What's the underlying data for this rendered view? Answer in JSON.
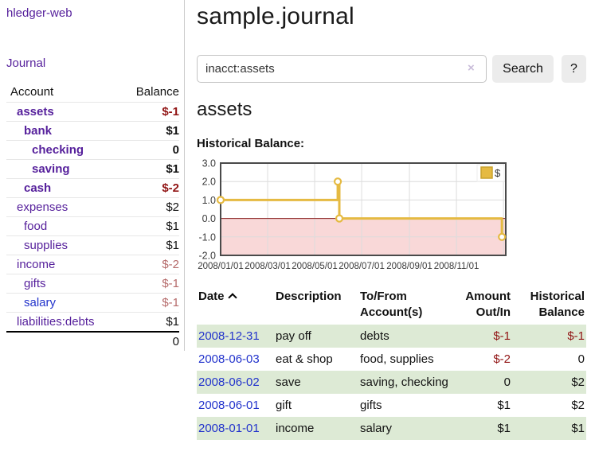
{
  "sidebar": {
    "brand": "hledger-web",
    "journal_label": "Journal",
    "accounts_table": {
      "headers": {
        "account": "Account",
        "balance": "Balance"
      },
      "rows": [
        {
          "name": "assets",
          "balance": "$-1",
          "indent": 1,
          "emph": true,
          "balance_style": "neg-strong"
        },
        {
          "name": "bank",
          "balance": "$1",
          "indent": 2,
          "emph": true,
          "balance_style": "plain"
        },
        {
          "name": "checking",
          "balance": "0",
          "indent": 3,
          "emph": true,
          "balance_style": "plain"
        },
        {
          "name": "saving",
          "balance": "$1",
          "indent": 3,
          "emph": true,
          "balance_style": "plain"
        },
        {
          "name": "cash",
          "balance": "$-2",
          "indent": 2,
          "emph": true,
          "balance_style": "neg-strong"
        },
        {
          "name": "expenses",
          "balance": "$2",
          "indent": 1,
          "emph": false,
          "balance_style": "plain"
        },
        {
          "name": "food",
          "balance": "$1",
          "indent": 2,
          "emph": false,
          "balance_style": "plain"
        },
        {
          "name": "supplies",
          "balance": "$1",
          "indent": 2,
          "emph": false,
          "balance_style": "plain"
        },
        {
          "name": "income",
          "balance": "$-2",
          "indent": 1,
          "emph": false,
          "balance_style": "neg-soft"
        },
        {
          "name": "gifts",
          "balance": "$-1",
          "indent": 2,
          "emph": false,
          "balance_style": "neg-soft"
        },
        {
          "name": "salary",
          "balance": "$-1",
          "indent": 2,
          "emph": false,
          "balance_style": "neg-soft",
          "name_color": "blue"
        },
        {
          "name": "liabilities:debts",
          "balance": "$1",
          "indent": 1,
          "emph": false,
          "balance_style": "plain"
        }
      ],
      "total": "0"
    }
  },
  "main": {
    "title": "sample.journal",
    "search": {
      "value": "inacct:assets",
      "clear_symbol": "×",
      "button_label": "Search",
      "help_label": "?"
    },
    "account_heading": "assets",
    "chart_heading": "Historical Balance:"
  },
  "chart_data": {
    "type": "line",
    "title": "Historical Balance",
    "series": [
      {
        "name": "$",
        "color": "#e5ba42",
        "step": true,
        "points": [
          {
            "date": "2008/01/01",
            "day": 0,
            "value": 1
          },
          {
            "date": "2008/06/01",
            "day": 152,
            "value": 2
          },
          {
            "date": "2008/06/03",
            "day": 154,
            "value": 0
          },
          {
            "date": "2008/12/31",
            "day": 365,
            "value": -1
          }
        ]
      }
    ],
    "ylim": [
      -2,
      3
    ],
    "yticks": [
      3.0,
      2.0,
      1.0,
      0.0,
      -1.0,
      -2.0
    ],
    "xlim_days": [
      0,
      370
    ],
    "xticks": [
      {
        "day": 0,
        "label": "2008/01/01"
      },
      {
        "day": 61,
        "label": "2008/03/01"
      },
      {
        "day": 122,
        "label": "2008/05/01"
      },
      {
        "day": 183,
        "label": "2008/07/01"
      },
      {
        "day": 245,
        "label": "2008/09/01"
      },
      {
        "day": 306,
        "label": "2008/11/01"
      },
      {
        "day": 367,
        "label": ""
      }
    ],
    "grid": true,
    "legend_position": "top-right",
    "negative_region_color": "#f9d8d8",
    "zero_line_color": "#8b1f1f"
  },
  "register": {
    "headers": {
      "date": "Date",
      "description": "Description",
      "accounts": "To/From Account(s)",
      "amount": "Amount Out/In",
      "balance": "Historical Balance"
    },
    "rows": [
      {
        "date": "2008-12-31",
        "description": "pay off",
        "accounts": "debts",
        "amount": "$-1",
        "amount_neg": true,
        "balance": "$-1",
        "balance_neg": true
      },
      {
        "date": "2008-06-03",
        "description": "eat & shop",
        "accounts": "food, supplies",
        "amount": "$-2",
        "amount_neg": true,
        "balance": "0",
        "balance_neg": false
      },
      {
        "date": "2008-06-02",
        "description": "save",
        "accounts": "saving, checking",
        "amount": "0",
        "amount_neg": false,
        "balance": "$2",
        "balance_neg": false
      },
      {
        "date": "2008-06-01",
        "description": "gift",
        "accounts": "gifts",
        "amount": "$1",
        "amount_neg": false,
        "balance": "$2",
        "balance_neg": false
      },
      {
        "date": "2008-01-01",
        "description": "income",
        "accounts": "salary",
        "amount": "$1",
        "amount_neg": false,
        "balance": "$1",
        "balance_neg": false
      }
    ]
  },
  "colors": {
    "link_purple": "#551f9b",
    "link_blue": "#2233cc",
    "negative_strong": "#911414",
    "negative_soft": "#b56a6a",
    "stripe_green": "#ddead5",
    "chart_gold": "#e5ba42",
    "chart_negative_band": "#f9d8d8"
  }
}
